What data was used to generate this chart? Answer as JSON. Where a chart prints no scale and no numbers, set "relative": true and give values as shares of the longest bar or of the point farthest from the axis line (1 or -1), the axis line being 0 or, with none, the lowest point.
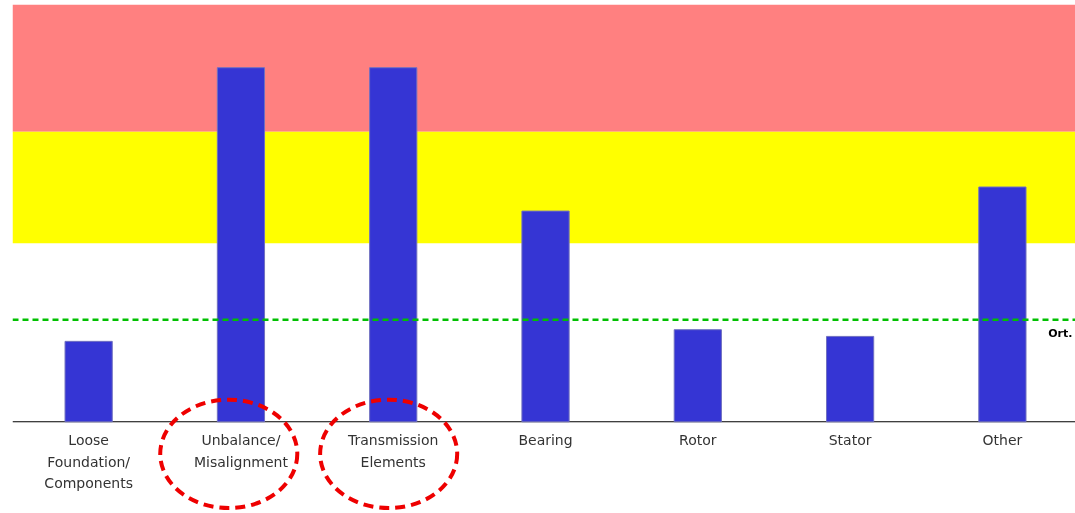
{
  "chart_data": {
    "type": "bar",
    "relative": true,
    "categories": [
      "Loose\nFoundation/\nComponents",
      "Unbalance/\nMisalignment",
      "Transmission\nElements",
      "Bearing",
      "Rotor",
      "Stator",
      "Other"
    ],
    "values": [
      0.227,
      1,
      1,
      0.595,
      0.26,
      0.241,
      0.663
    ],
    "color": "#3535d4",
    "bands": [
      {
        "axis": "y",
        "from": 0.819,
        "to": 1.178,
        "label": null,
        "color": "#ff8080"
      },
      {
        "axis": "y",
        "from": 0.504,
        "to": 0.819,
        "label": null,
        "color": "#ffff00"
      }
    ],
    "ref_lines": [
      {
        "axis": "y",
        "value": 0.288,
        "label": "Ort.",
        "color": "#00c000",
        "line_style": "dashed"
      }
    ],
    "grid": false
  }
}
